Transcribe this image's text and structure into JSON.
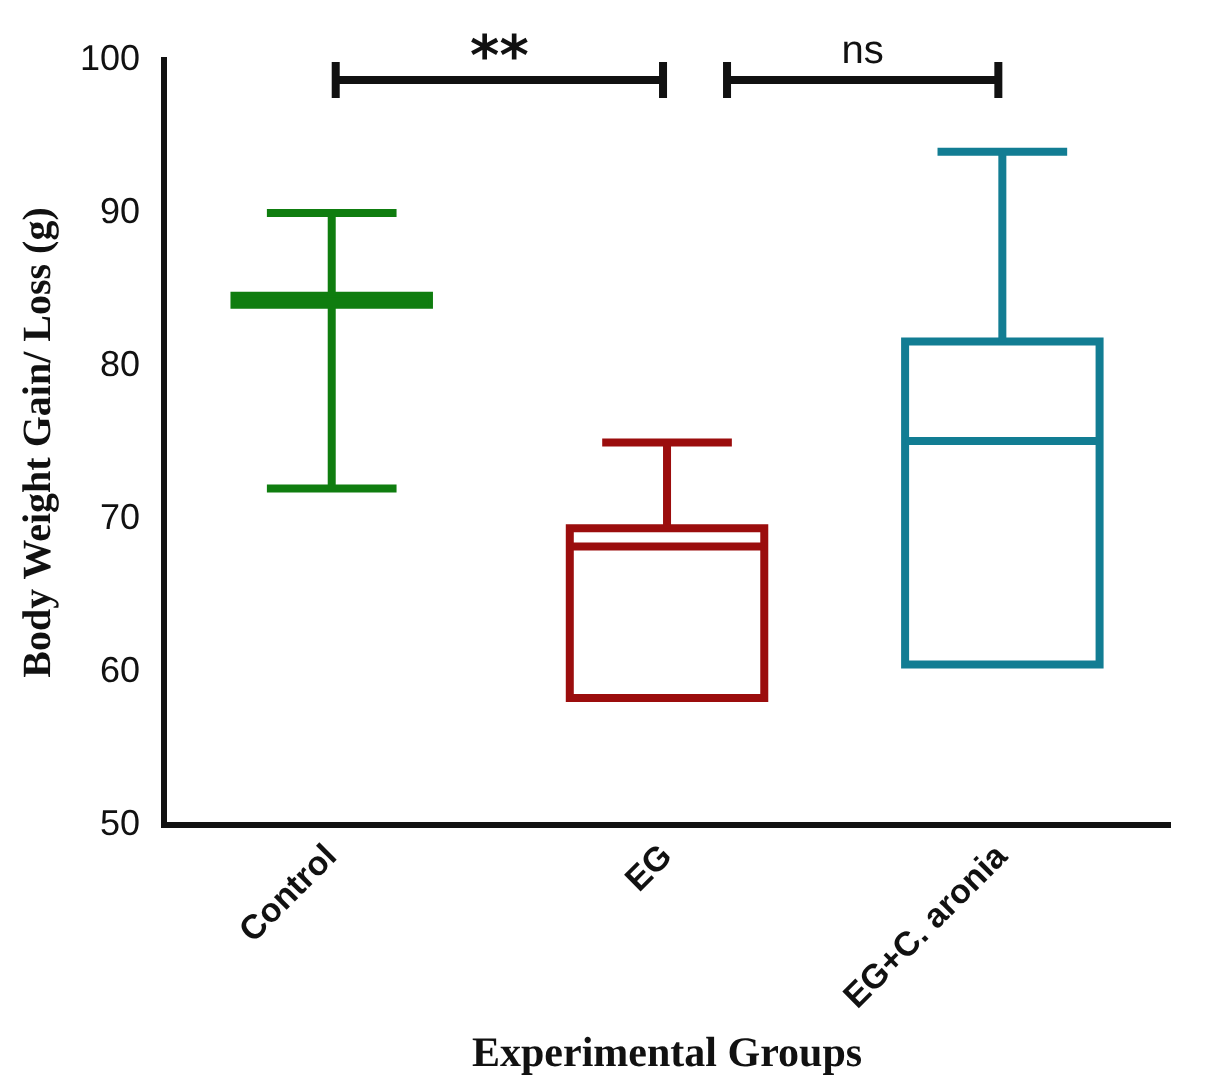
{
  "chart_data": {
    "type": "box",
    "xlabel": "Experimental Groups",
    "ylabel": "Body Weight Gain/ Loss (g)",
    "categories": [
      "Control",
      "EG",
      "EG+C. aronia"
    ],
    "series": [
      {
        "boxes": [
          {
            "low": 72,
            "q1": 84,
            "median": 84.2,
            "q3": 84.6,
            "high": 90
          },
          {
            "low": 58.3,
            "q1": 58.3,
            "median": 68.2,
            "q3": 69.4,
            "high": 75
          },
          {
            "low": 60.5,
            "q1": 60.5,
            "median": 75.1,
            "q3": 81.6,
            "high": 94
          }
        ],
        "colors": [
          "#0f7d0f",
          "#9b0d0d",
          "#127d93"
        ]
      }
    ],
    "ylim": [
      50,
      100
    ],
    "yticks": [
      50,
      60,
      70,
      80,
      90,
      100
    ],
    "grid": false,
    "legend": false,
    "annotations": [
      "**",
      "ns"
    ]
  }
}
